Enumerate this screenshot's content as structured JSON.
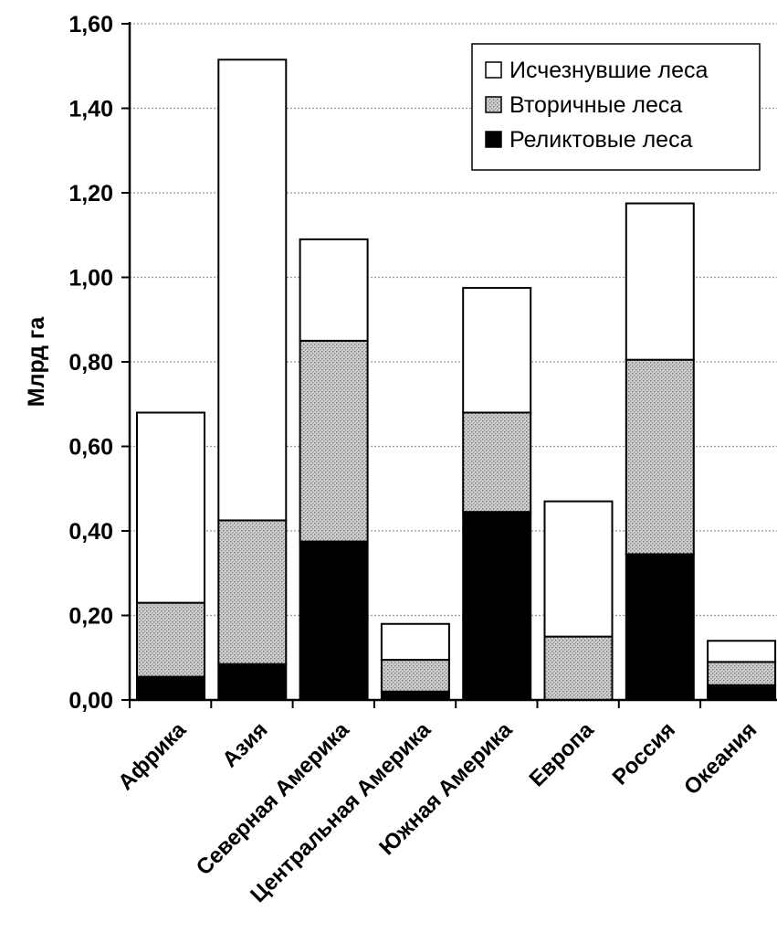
{
  "chart_data": {
    "type": "bar",
    "stacked": true,
    "title": "",
    "xlabel": "",
    "ylabel": "Млрд га",
    "ylim": [
      0,
      1.6
    ],
    "yticks": [
      "0,00",
      "0,20",
      "0,40",
      "0,60",
      "0,80",
      "1,00",
      "1,20",
      "1,40",
      "1,60"
    ],
    "grid": true,
    "legend_position": "top-right",
    "categories": [
      "Африка",
      "Азия",
      "Северная Америка",
      "Центральная Америка",
      "Южная Америка",
      "Европа",
      "Россия",
      "Океания"
    ],
    "series": [
      {
        "name": "Реликтовые леса",
        "color": "#000000",
        "values": [
          0.055,
          0.085,
          0.375,
          0.02,
          0.445,
          0.0,
          0.345,
          0.035
        ]
      },
      {
        "name": "Вторичные леса",
        "color": "#c4c4c4",
        "values": [
          0.175,
          0.34,
          0.475,
          0.075,
          0.235,
          0.15,
          0.46,
          0.055
        ]
      },
      {
        "name": "Исчезнувшие леса",
        "color": "#ffffff",
        "values": [
          0.45,
          1.09,
          0.24,
          0.085,
          0.295,
          0.32,
          0.37,
          0.05
        ]
      }
    ],
    "legend_order": [
      "Исчезнувшие леса",
      "Вторичные леса",
      "Реликтовые леса"
    ]
  }
}
